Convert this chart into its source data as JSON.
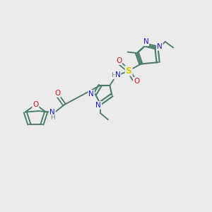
{
  "background_color": "#ebebeb",
  "bond_color": "#4a7a6a",
  "bond_width": 1.5,
  "n_color": "#1818cc",
  "o_color": "#cc1818",
  "s_color": "#cccc00",
  "h_color": "#6a8a8a",
  "figsize": [
    3.0,
    3.0
  ],
  "dpi": 100,
  "xlim": [
    0,
    10
  ],
  "ylim": [
    0,
    10
  ]
}
